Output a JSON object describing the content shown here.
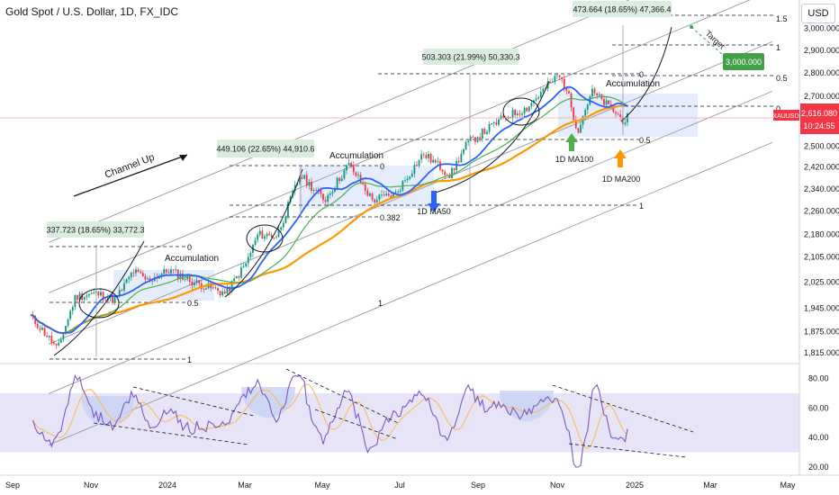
{
  "header": {
    "title": "Gold Spot / U.S. Dollar, 1D, FX_IDC",
    "currency": "USD"
  },
  "colors": {
    "up": "#089981",
    "down": "#f23645",
    "ma50": "#2962ff",
    "ma100": "#4caf50",
    "ma200": "#ff9800",
    "rsi": "#7e57c2",
    "rsi_ma": "#ffb74d",
    "box": "#dce6fb",
    "rsi_band": "#e8e4f7",
    "label_bg": "#d9ecdd",
    "target": "#43a047",
    "price_tag": "#f23645"
  },
  "chart_data": [
    {
      "type": "candlestick",
      "title": "Gold Spot / U.S. Dollar, 1D, FX_IDC",
      "x_ticks": [
        "Sep",
        "Nov",
        "2024",
        "Mar",
        "May",
        "Jul",
        "Sep",
        "Nov",
        "2025",
        "Mar",
        "May"
      ],
      "y_ticks": [
        1815,
        1875,
        1945,
        2025,
        2105,
        2180,
        2260,
        2340,
        2420,
        2500,
        2600,
        2700,
        2800,
        2900,
        3000
      ],
      "y_tick_labels": [
        "1,815.000",
        "1,875.000",
        "1,945.000",
        "2,025.000",
        "2,105.000",
        "2,180.000",
        "2,260.000",
        "2,340.000",
        "2,420.000",
        "2,500.000",
        "2,600.000",
        "2,700.000",
        "2,800.000",
        "2,900.000",
        "3,000.000"
      ],
      "ylim": [
        1785,
        3120
      ],
      "scale": "log",
      "last_price": "2,616.080",
      "last_price_time": "10:24:55",
      "symbol_tag": "XAUUSD",
      "price_path": [
        [
          "Sep",
          1925
        ],
        [
          "2023-09-15",
          1920
        ],
        [
          "2023-10-01",
          1850
        ],
        [
          "2023-10-06",
          1822
        ],
        [
          "2023-10-20",
          1980
        ],
        [
          "2023-11-05",
          1990
        ],
        [
          "2023-11-20",
          1970
        ],
        [
          "2023-12-04",
          2060
        ],
        [
          "2023-12-15",
          2030
        ],
        [
          "2024-01-01",
          2063
        ],
        [
          "2024-01-20",
          2025
        ],
        [
          "2024-02-14",
          1990
        ],
        [
          "2024-03-01",
          2085
        ],
        [
          "2024-03-10",
          2180
        ],
        [
          "2024-03-25",
          2175
        ],
        [
          "2024-04-12",
          2390
        ],
        [
          "2024-05-01",
          2300
        ],
        [
          "2024-05-20",
          2430
        ],
        [
          "2024-06-07",
          2300
        ],
        [
          "2024-06-25",
          2320
        ],
        [
          "2024-07-17",
          2470
        ],
        [
          "2024-08-07",
          2390
        ],
        [
          "2024-08-20",
          2510
        ],
        [
          "2024-09-20",
          2620
        ],
        [
          "2024-10-05",
          2650
        ],
        [
          "2024-10-30",
          2790
        ],
        [
          "2024-11-05",
          2740
        ],
        [
          "2024-11-14",
          2560
        ],
        [
          "2024-11-25",
          2720
        ],
        [
          "2024-12-10",
          2650
        ],
        [
          "2024-12-20",
          2600
        ],
        [
          "2024-12-24",
          2616
        ]
      ],
      "moving_averages": [
        {
          "name": "1D MA50",
          "color": "#2962ff"
        },
        {
          "name": "1D MA100",
          "color": "#4caf50"
        },
        {
          "name": "1D MA200",
          "color": "#ff9800"
        }
      ],
      "annotations": {
        "channel_label": "Channel Up",
        "accumulation": [
          "Accumulation",
          "Accumulation",
          "Accumulation"
        ],
        "ma_labels": [
          "1D MA50",
          "1D MA100",
          "1D MA200"
        ],
        "target_label": "Target",
        "target_value": "3,000.000",
        "measurements": [
          "337.723 (18.65%) 33,772.3",
          "449.106 (22.65%) 44,910.6",
          "503.303 (21.99%) 50,330.3",
          "473.664 (18.65%) 47,366.4"
        ],
        "fib_levels": [
          [
            "0",
            "0.5",
            "1"
          ],
          [
            "0",
            "0.382",
            "1"
          ],
          [
            "0",
            "0.5",
            "1"
          ],
          [
            "1.5",
            "1",
            "0.5",
            "0"
          ]
        ]
      }
    },
    {
      "type": "line",
      "title": "",
      "series": [
        {
          "values": []
        }
      ],
      "y_ticks": [
        20,
        40,
        60,
        80
      ],
      "y_tick_labels": [
        "20.00",
        "40.00",
        "60.00",
        "80.00"
      ],
      "ylim": [
        15,
        85
      ],
      "band": [
        30,
        70
      ]
    }
  ]
}
